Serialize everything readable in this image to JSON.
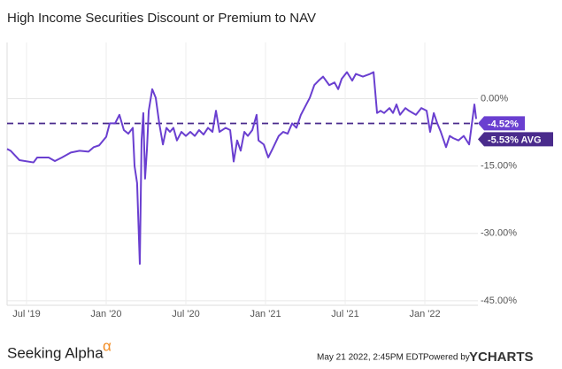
{
  "chart_data": {
    "type": "line",
    "title": "High Income Securities Discount or Premium to NAV",
    "x": [
      2019.378,
      2019.4,
      2019.456,
      2019.544,
      2019.567,
      2019.639,
      2019.678,
      2019.722,
      2019.778,
      2019.833,
      2019.889,
      2019.922,
      2019.956,
      2020.0,
      2020.022,
      2020.056,
      2020.083,
      2020.111,
      2020.139,
      2020.167,
      2020.178,
      2020.194,
      2020.211,
      2020.222,
      2020.233,
      2020.244,
      2020.256,
      2020.267,
      2020.289,
      2020.311,
      2020.333,
      2020.356,
      2020.378,
      2020.4,
      2020.422,
      2020.444,
      2020.472,
      2020.5,
      2020.528,
      2020.556,
      2020.583,
      2020.611,
      2020.639,
      2020.667,
      2020.689,
      2020.711,
      2020.75,
      2020.778,
      2020.8,
      2020.822,
      2020.844,
      2020.867,
      2020.889,
      2020.917,
      2020.944,
      2020.956,
      2020.989,
      2021.017,
      2021.044,
      2021.083,
      2021.111,
      2021.139,
      2021.167,
      2021.194,
      2021.222,
      2021.25,
      2021.278,
      2021.306,
      2021.333,
      2021.361,
      2021.4,
      2021.433,
      2021.456,
      2021.478,
      2021.511,
      2021.544,
      2021.567,
      2021.611,
      2021.656,
      2021.678,
      2021.7,
      2021.722,
      2021.744,
      2021.778,
      2021.8,
      2021.822,
      2021.844,
      2021.878,
      2021.9,
      2021.944,
      2021.978,
      2022.011,
      2022.033,
      2022.056,
      2022.078,
      2022.1,
      2022.133,
      2022.156,
      2022.178,
      2022.211,
      2022.244,
      2022.278,
      2022.311,
      2022.322
    ],
    "series": [
      {
        "name": "High Income Securities Discount or Premium to NAV",
        "color": "#6a3fd0",
        "values": [
          -11.2,
          -11.6,
          -13.7,
          -14.2,
          -13.1,
          -13.1,
          -13.9,
          -13.1,
          -12,
          -11.6,
          -11.8,
          -10.8,
          -10.4,
          -8.5,
          -5.5,
          -5.5,
          -3.6,
          -7,
          -7.8,
          -6.5,
          -15,
          -18.8,
          -36.8,
          -9.3,
          -3.2,
          -17.8,
          -11.2,
          -2.7,
          2.1,
          0.2,
          -5.5,
          -10.2,
          -6.5,
          -7.4,
          -6.5,
          -9.3,
          -7.4,
          -8.3,
          -7.4,
          -8.3,
          -7,
          -8,
          -6.5,
          -7.4,
          -2.7,
          -7.4,
          -6.5,
          -7,
          -14,
          -9.3,
          -11.6,
          -7.4,
          -8.3,
          -7,
          -3.6,
          -9.3,
          -10.2,
          -13.1,
          -11.2,
          -8.3,
          -7.4,
          -7.8,
          -5.5,
          -6.5,
          -3.6,
          -1.7,
          0.2,
          3,
          4,
          4.9,
          3,
          3.6,
          2.1,
          4.4,
          5.9,
          4,
          5.5,
          4.9,
          5.5,
          5.9,
          -3.2,
          -2.7,
          -3.2,
          -2.1,
          -3.2,
          -1.3,
          -3.6,
          -2.1,
          -2.7,
          -3.6,
          -2.1,
          -2.7,
          -7.4,
          -3.2,
          -5.5,
          -7.4,
          -10.8,
          -8.3,
          -8.8,
          -9.3,
          -8.3,
          -10.2,
          -1.3,
          -4.52
        ]
      }
    ],
    "last_value": -4.52,
    "last_value_label": "-4.52%",
    "average": -5.53,
    "average_label": "-5.53% AVG",
    "average_color": "#4a2b8c",
    "xlim": [
      2019.378,
      2022.333
    ],
    "xticks": [
      {
        "value": 2019.5,
        "label": "Jul '19"
      },
      {
        "value": 2020,
        "label": "Jan '20"
      },
      {
        "value": 2020.5,
        "label": "Jul '20"
      },
      {
        "value": 2021,
        "label": "Jan '21"
      },
      {
        "value": 2021.5,
        "label": "Jul '21"
      },
      {
        "value": 2022,
        "label": "Jan '22"
      }
    ],
    "ylim": [
      -46,
      12.5
    ],
    "yticks": [
      {
        "value": 0,
        "label": "0.00%"
      },
      {
        "value": -15,
        "label": "-15.00%"
      },
      {
        "value": -30,
        "label": "-30.00%"
      },
      {
        "value": -45,
        "label": "-45.00%"
      }
    ],
    "grid": true
  },
  "footer": {
    "brand": "Seeking Alpha",
    "brand_mark": "α",
    "timestamp": "May 21 2022, 2:45PM EDT.",
    "powered": "Powered by",
    "provider": "YCHARTS"
  }
}
